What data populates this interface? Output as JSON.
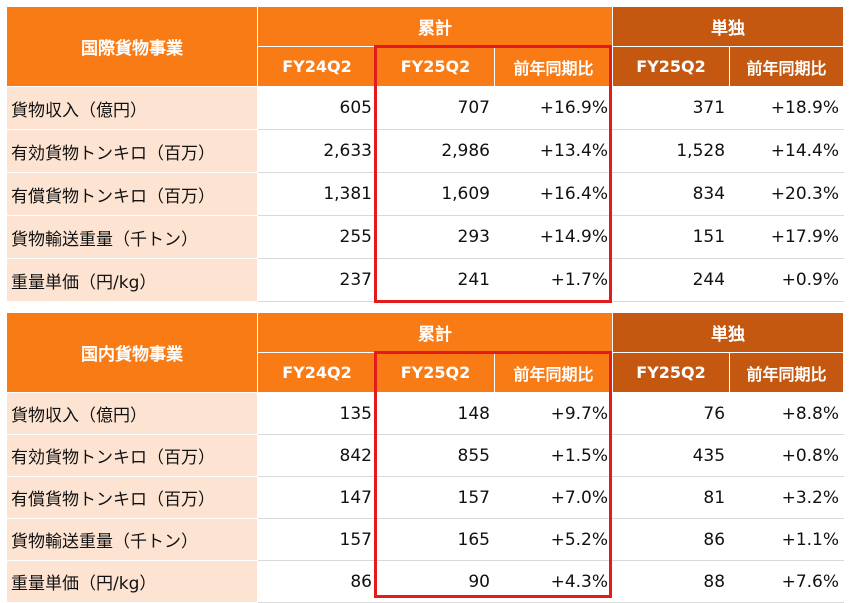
{
  "tables": [
    {
      "title": "国際貨物事業",
      "group_cumulative": "累計",
      "group_single": "単独",
      "columns": [
        "FY24Q2",
        "FY25Q2",
        "前年同期比",
        "FY25Q2",
        "前年同期比"
      ],
      "rows": [
        {
          "label": "貨物収入（億円）",
          "values": [
            "605",
            "707",
            "+16.9%",
            "371",
            "+18.9%"
          ]
        },
        {
          "label": "有効貨物トンキロ（百万）",
          "values": [
            "2,633",
            "2,986",
            "+13.4%",
            "1,528",
            "+14.4%"
          ]
        },
        {
          "label": "有償貨物トンキロ（百万）",
          "values": [
            "1,381",
            "1,609",
            "+16.4%",
            "834",
            "+20.3%"
          ]
        },
        {
          "label": "貨物輸送重量（千トン）",
          "values": [
            "255",
            "293",
            "+14.9%",
            "151",
            "+17.9%"
          ]
        },
        {
          "label": "重量単価（円/kg）",
          "values": [
            "237",
            "241",
            "+1.7%",
            "244",
            "+0.9%"
          ]
        }
      ]
    },
    {
      "title": "国内貨物事業",
      "group_cumulative": "累計",
      "group_single": "単独",
      "columns": [
        "FY24Q2",
        "FY25Q2",
        "前年同期比",
        "FY25Q2",
        "前年同期比"
      ],
      "rows": [
        {
          "label": "貨物収入（億円）",
          "values": [
            "135",
            "148",
            "+9.7%",
            "76",
            "+8.8%"
          ]
        },
        {
          "label": "有効貨物トンキロ（百万）",
          "values": [
            "842",
            "855",
            "+1.5%",
            "435",
            "+0.8%"
          ]
        },
        {
          "label": "有償貨物トンキロ（百万）",
          "values": [
            "147",
            "157",
            "+7.0%",
            "81",
            "+3.2%"
          ]
        },
        {
          "label": "貨物輸送重量（千トン）",
          "values": [
            "157",
            "165",
            "+5.2%",
            "86",
            "+1.1%"
          ]
        },
        {
          "label": "重量単価（円/kg）",
          "values": [
            "86",
            "90",
            "+4.3%",
            "88",
            "+7.6%"
          ]
        }
      ]
    }
  ],
  "colors": {
    "header_orange": "#f97b15",
    "header_dark": "#c55811",
    "label_bg": "#fde4d2",
    "highlight_border": "#e21b1b"
  }
}
